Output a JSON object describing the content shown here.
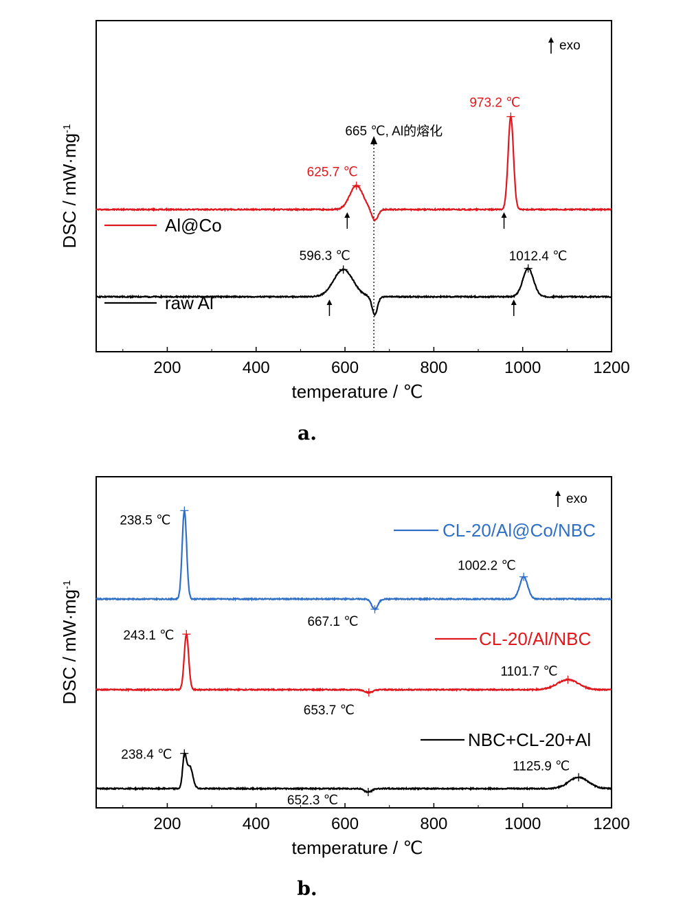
{
  "chart_data": [
    {
      "type": "line",
      "panel_label": "a.",
      "xlabel": "temperature / ℃",
      "ylabel": "DSC / mW·mg",
      "ylabel_sup": "-1",
      "xlim": [
        40,
        1200
      ],
      "xticks": [
        200,
        400,
        600,
        800,
        1000,
        1200
      ],
      "exo_label": "exo",
      "series": [
        {
          "name": "Al@Co",
          "color": "#e0171d",
          "baseline": 2.3,
          "peaks": [
            {
              "x": 625.7,
              "amp": 1.05,
              "w": 15
            },
            {
              "x": 667,
              "amp": -0.5,
              "w": 7
            },
            {
              "x": 973.2,
              "amp": 4.1,
              "w": 6
            }
          ],
          "markers": [
            {
              "x": 625.7,
              "label": "625.7 ℃",
              "color": "#e0171d"
            },
            {
              "x": 973.2,
              "label": "973.2 ℃",
              "color": "#e0171d"
            }
          ],
          "onset_arrows": [
            605,
            958
          ]
        },
        {
          "name": "raw Al",
          "color": "#000000",
          "baseline": 0,
          "peaks": [
            {
              "x": 596.3,
              "amp": 1.2,
              "w": 22
            },
            {
              "x": 667,
              "amp": -0.8,
              "w": 6
            },
            {
              "x": 1012.4,
              "amp": 1.25,
              "w": 12
            }
          ],
          "markers": [
            {
              "x": 596.3,
              "label": "596.3 ℃",
              "color": "#000000"
            },
            {
              "x": 1012.4,
              "label": "1012.4 ℃",
              "color": "#000000"
            }
          ],
          "onset_arrows": [
            565,
            980
          ]
        }
      ],
      "vline": {
        "x": 665,
        "label": "665 ℃, Al的熔化"
      }
    },
    {
      "type": "line",
      "panel_label": "b.",
      "xlabel": "temperature / ℃",
      "ylabel": "DSC / mW·mg",
      "ylabel_sup": "-1",
      "xlim": [
        40,
        1200
      ],
      "xticks": [
        200,
        400,
        600,
        800,
        1000,
        1200
      ],
      "exo_label": "exo",
      "series": [
        {
          "name": "CL-20/Al@Co/NBC",
          "color": "#2f6fc6",
          "baseline": 2.7,
          "peaks": [
            {
              "x": 238.5,
              "amp": 3.9,
              "w": 5
            },
            {
              "x": 667.1,
              "amp": -0.45,
              "w": 7
            },
            {
              "x": 1002.2,
              "amp": 0.98,
              "w": 9
            }
          ],
          "markers": [
            {
              "x": 238.5,
              "label": "238.5 ℃",
              "color": "#2f6fc6"
            },
            {
              "x": 667.1,
              "label": "667.1 ℃",
              "color": "#2f6fc6"
            },
            {
              "x": 1002.2,
              "label": "1002.2 ℃",
              "color": "#2f6fc6"
            }
          ]
        },
        {
          "name": "CL-20/Al/NBC",
          "color": "#e0171d",
          "baseline": 1.1,
          "peaks": [
            {
              "x": 243.1,
              "amp": 2.45,
              "w": 5
            },
            {
              "x": 653.7,
              "amp": -0.12,
              "w": 9
            },
            {
              "x": 1101.7,
              "amp": 0.44,
              "w": 24
            }
          ],
          "markers": [
            {
              "x": 243.1,
              "label": "243.1 ℃",
              "color": "#e0171d"
            },
            {
              "x": 653.7,
              "label": "653.7 ℃",
              "color": "#e0171d"
            },
            {
              "x": 1101.7,
              "label": "1101.7 ℃",
              "color": "#e0171d"
            }
          ]
        },
        {
          "name": "NBC+CL-20+Al",
          "color": "#000000",
          "baseline": 0,
          "peaks": [
            {
              "x": 238.4,
              "amp": 1.3,
              "w": 4
            },
            {
              "x": 250,
              "amp": 1.0,
              "w": 7
            },
            {
              "x": 652.3,
              "amp": -0.15,
              "w": 8
            },
            {
              "x": 1125.9,
              "amp": 0.5,
              "w": 22
            }
          ],
          "markers": [
            {
              "x": 238.4,
              "label": "238.4 ℃",
              "color": "#000000"
            },
            {
              "x": 652.3,
              "label": "652.3 ℃",
              "color": "#000000"
            },
            {
              "x": 1125.9,
              "label": "1125.9 ℃",
              "color": "#000000"
            }
          ]
        }
      ]
    }
  ]
}
